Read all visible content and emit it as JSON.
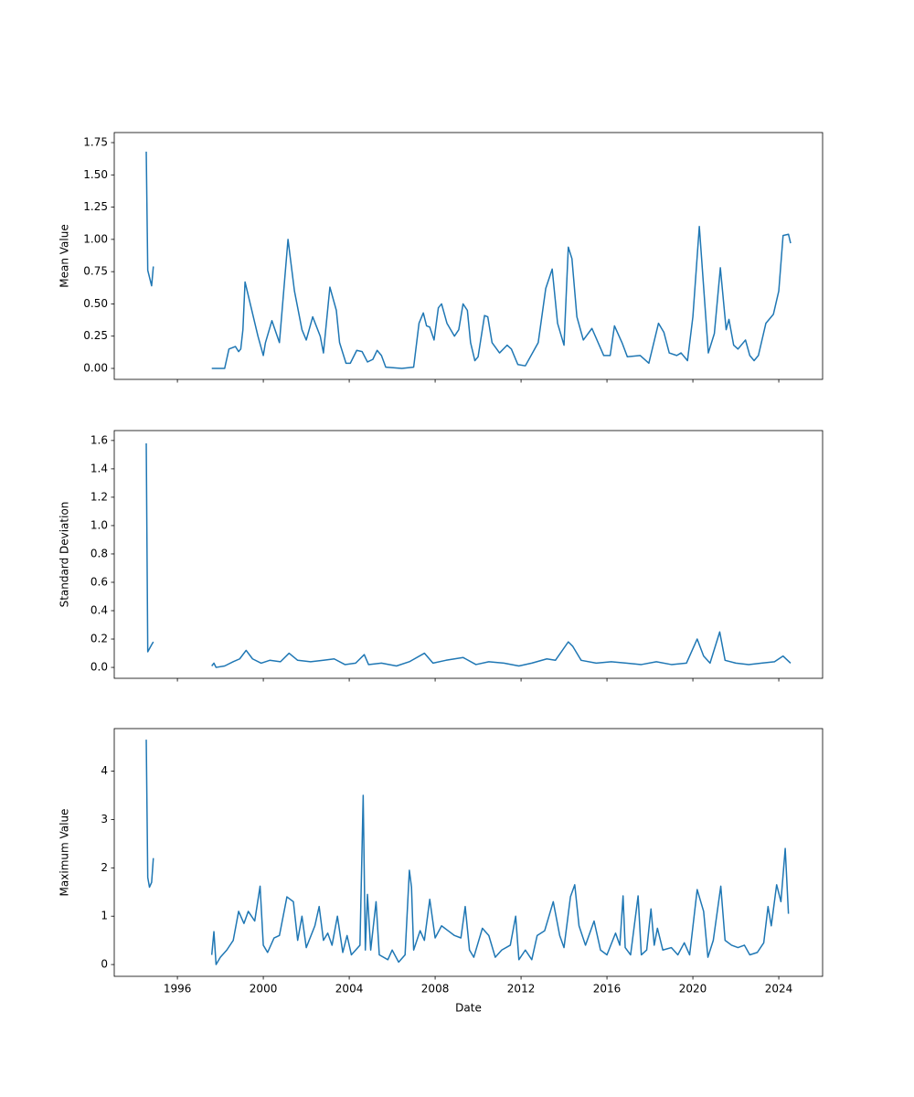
{
  "chart_data": [
    {
      "type": "line",
      "ylabel": "Mean Value",
      "color": "#1f77b4",
      "xlim": [
        1993.06,
        2026.04
      ],
      "xticks": [
        1996,
        2000,
        2004,
        2008,
        2012,
        2016,
        2020,
        2024
      ],
      "ylim": [
        -0.085,
        1.828
      ],
      "yticks": [
        {
          "value": 0,
          "label": "0.00"
        },
        {
          "value": 0.25,
          "label": "0.25"
        },
        {
          "value": 0.5,
          "label": "0.50"
        },
        {
          "value": 0.75,
          "label": "0.75"
        },
        {
          "value": 1,
          "label": "1.00"
        },
        {
          "value": 1.25,
          "label": "1.25"
        },
        {
          "value": 1.5,
          "label": "1.50"
        },
        {
          "value": 1.75,
          "label": "1.75"
        }
      ],
      "x": [
        1994.55,
        1994.62,
        1994.8,
        1994.88,
        1996,
        1997.6,
        1998.2,
        1998.4,
        1998.7,
        1998.85,
        1998.95,
        1999.05,
        1999.15,
        1999.75,
        2000,
        2000.1,
        2000.4,
        2000.75,
        2001.15,
        2001.45,
        2001.8,
        2002,
        2002.3,
        2002.65,
        2002.8,
        2003.1,
        2003.4,
        2003.55,
        2003.85,
        2004.05,
        2004.35,
        2004.6,
        2004.85,
        2005.1,
        2005.3,
        2005.5,
        2005.7,
        2006.45,
        2007,
        2007.25,
        2007.45,
        2007.6,
        2007.75,
        2007.95,
        2008.15,
        2008.3,
        2008.55,
        2008.9,
        2009.1,
        2009.3,
        2009.5,
        2009.65,
        2009.85,
        2010.0,
        2010.3,
        2010.45,
        2010.65,
        2011,
        2011.35,
        2011.55,
        2011.85,
        2012.2,
        2012.6,
        2012.8,
        2013.15,
        2013.45,
        2013.7,
        2014,
        2014.2,
        2014.37,
        2014.6,
        2014.9,
        2015.3,
        2015.85,
        2016.15,
        2016.35,
        2016.7,
        2016.95,
        2017.55,
        2017.95,
        2018.4,
        2018.65,
        2018.9,
        2019.25,
        2019.45,
        2019.75,
        2020,
        2020.3,
        2020.6,
        2020.72,
        2021,
        2021.28,
        2021.55,
        2021.68,
        2021.9,
        2022.1,
        2022.45,
        2022.65,
        2022.85,
        2023.05,
        2023.4,
        2023.75,
        2024,
        2024.2,
        2024.45,
        2024.55
      ],
      "values": [
        1.68,
        0.76,
        0.64,
        0.79,
        null,
        0.0,
        0.0,
        0.15,
        0.17,
        0.13,
        0.15,
        0.3,
        0.67,
        0.25,
        0.1,
        0.2,
        0.37,
        0.2,
        1.0,
        0.6,
        0.3,
        0.22,
        0.4,
        0.25,
        0.12,
        0.63,
        0.45,
        0.2,
        0.04,
        0.04,
        0.14,
        0.13,
        0.05,
        0.07,
        0.14,
        0.1,
        0.01,
        0.0,
        0.01,
        0.35,
        0.43,
        0.33,
        0.32,
        0.22,
        0.47,
        0.5,
        0.35,
        0.25,
        0.3,
        0.5,
        0.45,
        0.2,
        0.06,
        0.09,
        0.41,
        0.4,
        0.2,
        0.12,
        0.18,
        0.15,
        0.03,
        0.02,
        0.14,
        0.2,
        0.62,
        0.77,
        0.35,
        0.18,
        0.94,
        0.85,
        0.4,
        0.22,
        0.31,
        0.1,
        0.1,
        0.33,
        0.2,
        0.09,
        0.1,
        0.04,
        0.35,
        0.28,
        0.12,
        0.1,
        0.12,
        0.06,
        0.4,
        1.1,
        0.4,
        0.12,
        0.27,
        0.78,
        0.3,
        0.38,
        0.18,
        0.15,
        0.22,
        0.1,
        0.06,
        0.1,
        0.35,
        0.42,
        0.6,
        1.03,
        1.04,
        0.97
      ]
    },
    {
      "type": "line",
      "ylabel": "Standard Deviation",
      "color": "#1f77b4",
      "xlim": [
        1993.06,
        2026.04
      ],
      "xticks": [
        1996,
        2000,
        2004,
        2008,
        2012,
        2016,
        2020,
        2024
      ],
      "ylim": [
        -0.077,
        1.67
      ],
      "yticks": [
        {
          "value": 0,
          "label": "0.0"
        },
        0.2,
        0.4,
        0.6,
        0.8,
        {
          "value": 1,
          "label": "1.0"
        },
        1.2,
        1.4,
        1.6
      ],
      "x": [
        1994.55,
        1994.62,
        1994.8,
        1994.88,
        1996,
        1997.6,
        1997.7,
        1997.8,
        1998.2,
        1998.6,
        1998.9,
        1999.2,
        1999.5,
        1999.9,
        2000.3,
        2000.8,
        2001.2,
        2001.6,
        2002.2,
        2002.8,
        2003.3,
        2003.8,
        2004.3,
        2004.7,
        2004.9,
        2005.5,
        2006.2,
        2006.8,
        2007.5,
        2007.9,
        2008.5,
        2009.3,
        2009.9,
        2010.5,
        2011.2,
        2011.9,
        2012.5,
        2013.2,
        2013.6,
        2014.2,
        2014.4,
        2014.8,
        2015.5,
        2016.2,
        2016.9,
        2017.6,
        2018.3,
        2019.0,
        2019.7,
        2020.2,
        2020.5,
        2020.8,
        2021.25,
        2021.5,
        2022.0,
        2022.6,
        2023.2,
        2023.8,
        2024.2,
        2024.55
      ],
      "values": [
        1.58,
        0.11,
        0.16,
        0.18,
        null,
        0.01,
        0.03,
        0.0,
        0.01,
        0.04,
        0.06,
        0.12,
        0.06,
        0.03,
        0.05,
        0.04,
        0.1,
        0.05,
        0.04,
        0.05,
        0.06,
        0.02,
        0.03,
        0.09,
        0.02,
        0.03,
        0.01,
        0.04,
        0.1,
        0.03,
        0.05,
        0.07,
        0.02,
        0.04,
        0.03,
        0.01,
        0.03,
        0.06,
        0.05,
        0.18,
        0.15,
        0.05,
        0.03,
        0.04,
        0.03,
        0.02,
        0.04,
        0.02,
        0.03,
        0.2,
        0.08,
        0.03,
        0.25,
        0.05,
        0.03,
        0.02,
        0.03,
        0.04,
        0.08,
        0.03
      ]
    },
    {
      "type": "line",
      "ylabel": "Maximum Value",
      "xlabel": "Date",
      "color": "#1f77b4",
      "xlim": [
        1993.06,
        2026.04
      ],
      "xticks": [
        1996,
        2000,
        2004,
        2008,
        2012,
        2016,
        2020,
        2024
      ],
      "ylim": [
        -0.244,
        4.88
      ],
      "yticks": [
        0,
        1,
        2,
        3,
        4
      ],
      "x": [
        1994.55,
        1994.62,
        1994.7,
        1994.8,
        1994.88,
        1996,
        1997.6,
        1997.7,
        1997.8,
        1998,
        1998.3,
        1998.6,
        1998.85,
        1999.1,
        1999.3,
        1999.6,
        1999.85,
        2000.0,
        2000.2,
        2000.5,
        2000.75,
        2001.1,
        2001.4,
        2001.6,
        2001.8,
        2002.0,
        2002.4,
        2002.6,
        2002.8,
        2003.0,
        2003.2,
        2003.45,
        2003.7,
        2003.9,
        2004.1,
        2004.5,
        2004.65,
        2004.75,
        2004.85,
        2005.0,
        2005.25,
        2005.4,
        2005.8,
        2006.0,
        2006.3,
        2006.6,
        2006.8,
        2006.9,
        2007.0,
        2007.3,
        2007.5,
        2007.75,
        2008.0,
        2008.3,
        2008.6,
        2008.9,
        2009.2,
        2009.4,
        2009.6,
        2009.8,
        2010.2,
        2010.5,
        2010.8,
        2011.1,
        2011.5,
        2011.75,
        2011.9,
        2012.2,
        2012.5,
        2012.75,
        2013.1,
        2013.5,
        2013.8,
        2014.0,
        2014.3,
        2014.5,
        2014.7,
        2015.0,
        2015.4,
        2015.7,
        2016.0,
        2016.4,
        2016.6,
        2016.75,
        2016.85,
        2017.1,
        2017.45,
        2017.6,
        2017.85,
        2018.05,
        2018.2,
        2018.35,
        2018.6,
        2019.0,
        2019.3,
        2019.6,
        2019.85,
        2020.2,
        2020.5,
        2020.7,
        2020.95,
        2021.3,
        2021.5,
        2021.8,
        2022.1,
        2022.4,
        2022.65,
        2023.0,
        2023.3,
        2023.5,
        2023.65,
        2023.9,
        2024.1,
        2024.3,
        2024.45
      ],
      "values": [
        4.65,
        1.8,
        1.6,
        1.7,
        2.2,
        null,
        0.2,
        0.68,
        0.0,
        0.15,
        0.3,
        0.5,
        1.1,
        0.85,
        1.1,
        0.9,
        1.62,
        0.4,
        0.25,
        0.55,
        0.6,
        1.4,
        1.3,
        0.5,
        1.0,
        0.35,
        0.8,
        1.2,
        0.5,
        0.65,
        0.4,
        1.0,
        0.25,
        0.6,
        0.2,
        0.4,
        3.5,
        0.3,
        1.45,
        0.3,
        1.3,
        0.2,
        0.1,
        0.3,
        0.05,
        0.2,
        1.95,
        1.6,
        0.3,
        0.7,
        0.5,
        1.35,
        0.55,
        0.8,
        0.7,
        0.6,
        0.55,
        1.2,
        0.3,
        0.15,
        0.75,
        0.6,
        0.15,
        0.3,
        0.4,
        1.0,
        0.1,
        0.3,
        0.1,
        0.6,
        0.7,
        1.3,
        0.6,
        0.35,
        1.4,
        1.65,
        0.8,
        0.4,
        0.9,
        0.3,
        0.2,
        0.65,
        0.4,
        1.42,
        0.35,
        0.2,
        1.42,
        0.2,
        0.3,
        1.15,
        0.4,
        0.75,
        0.3,
        0.35,
        0.2,
        0.45,
        0.2,
        1.55,
        1.1,
        0.15,
        0.5,
        1.62,
        0.5,
        0.4,
        0.35,
        0.4,
        0.2,
        0.25,
        0.45,
        1.2,
        0.8,
        1.65,
        1.3,
        2.4,
        1.05
      ]
    }
  ]
}
